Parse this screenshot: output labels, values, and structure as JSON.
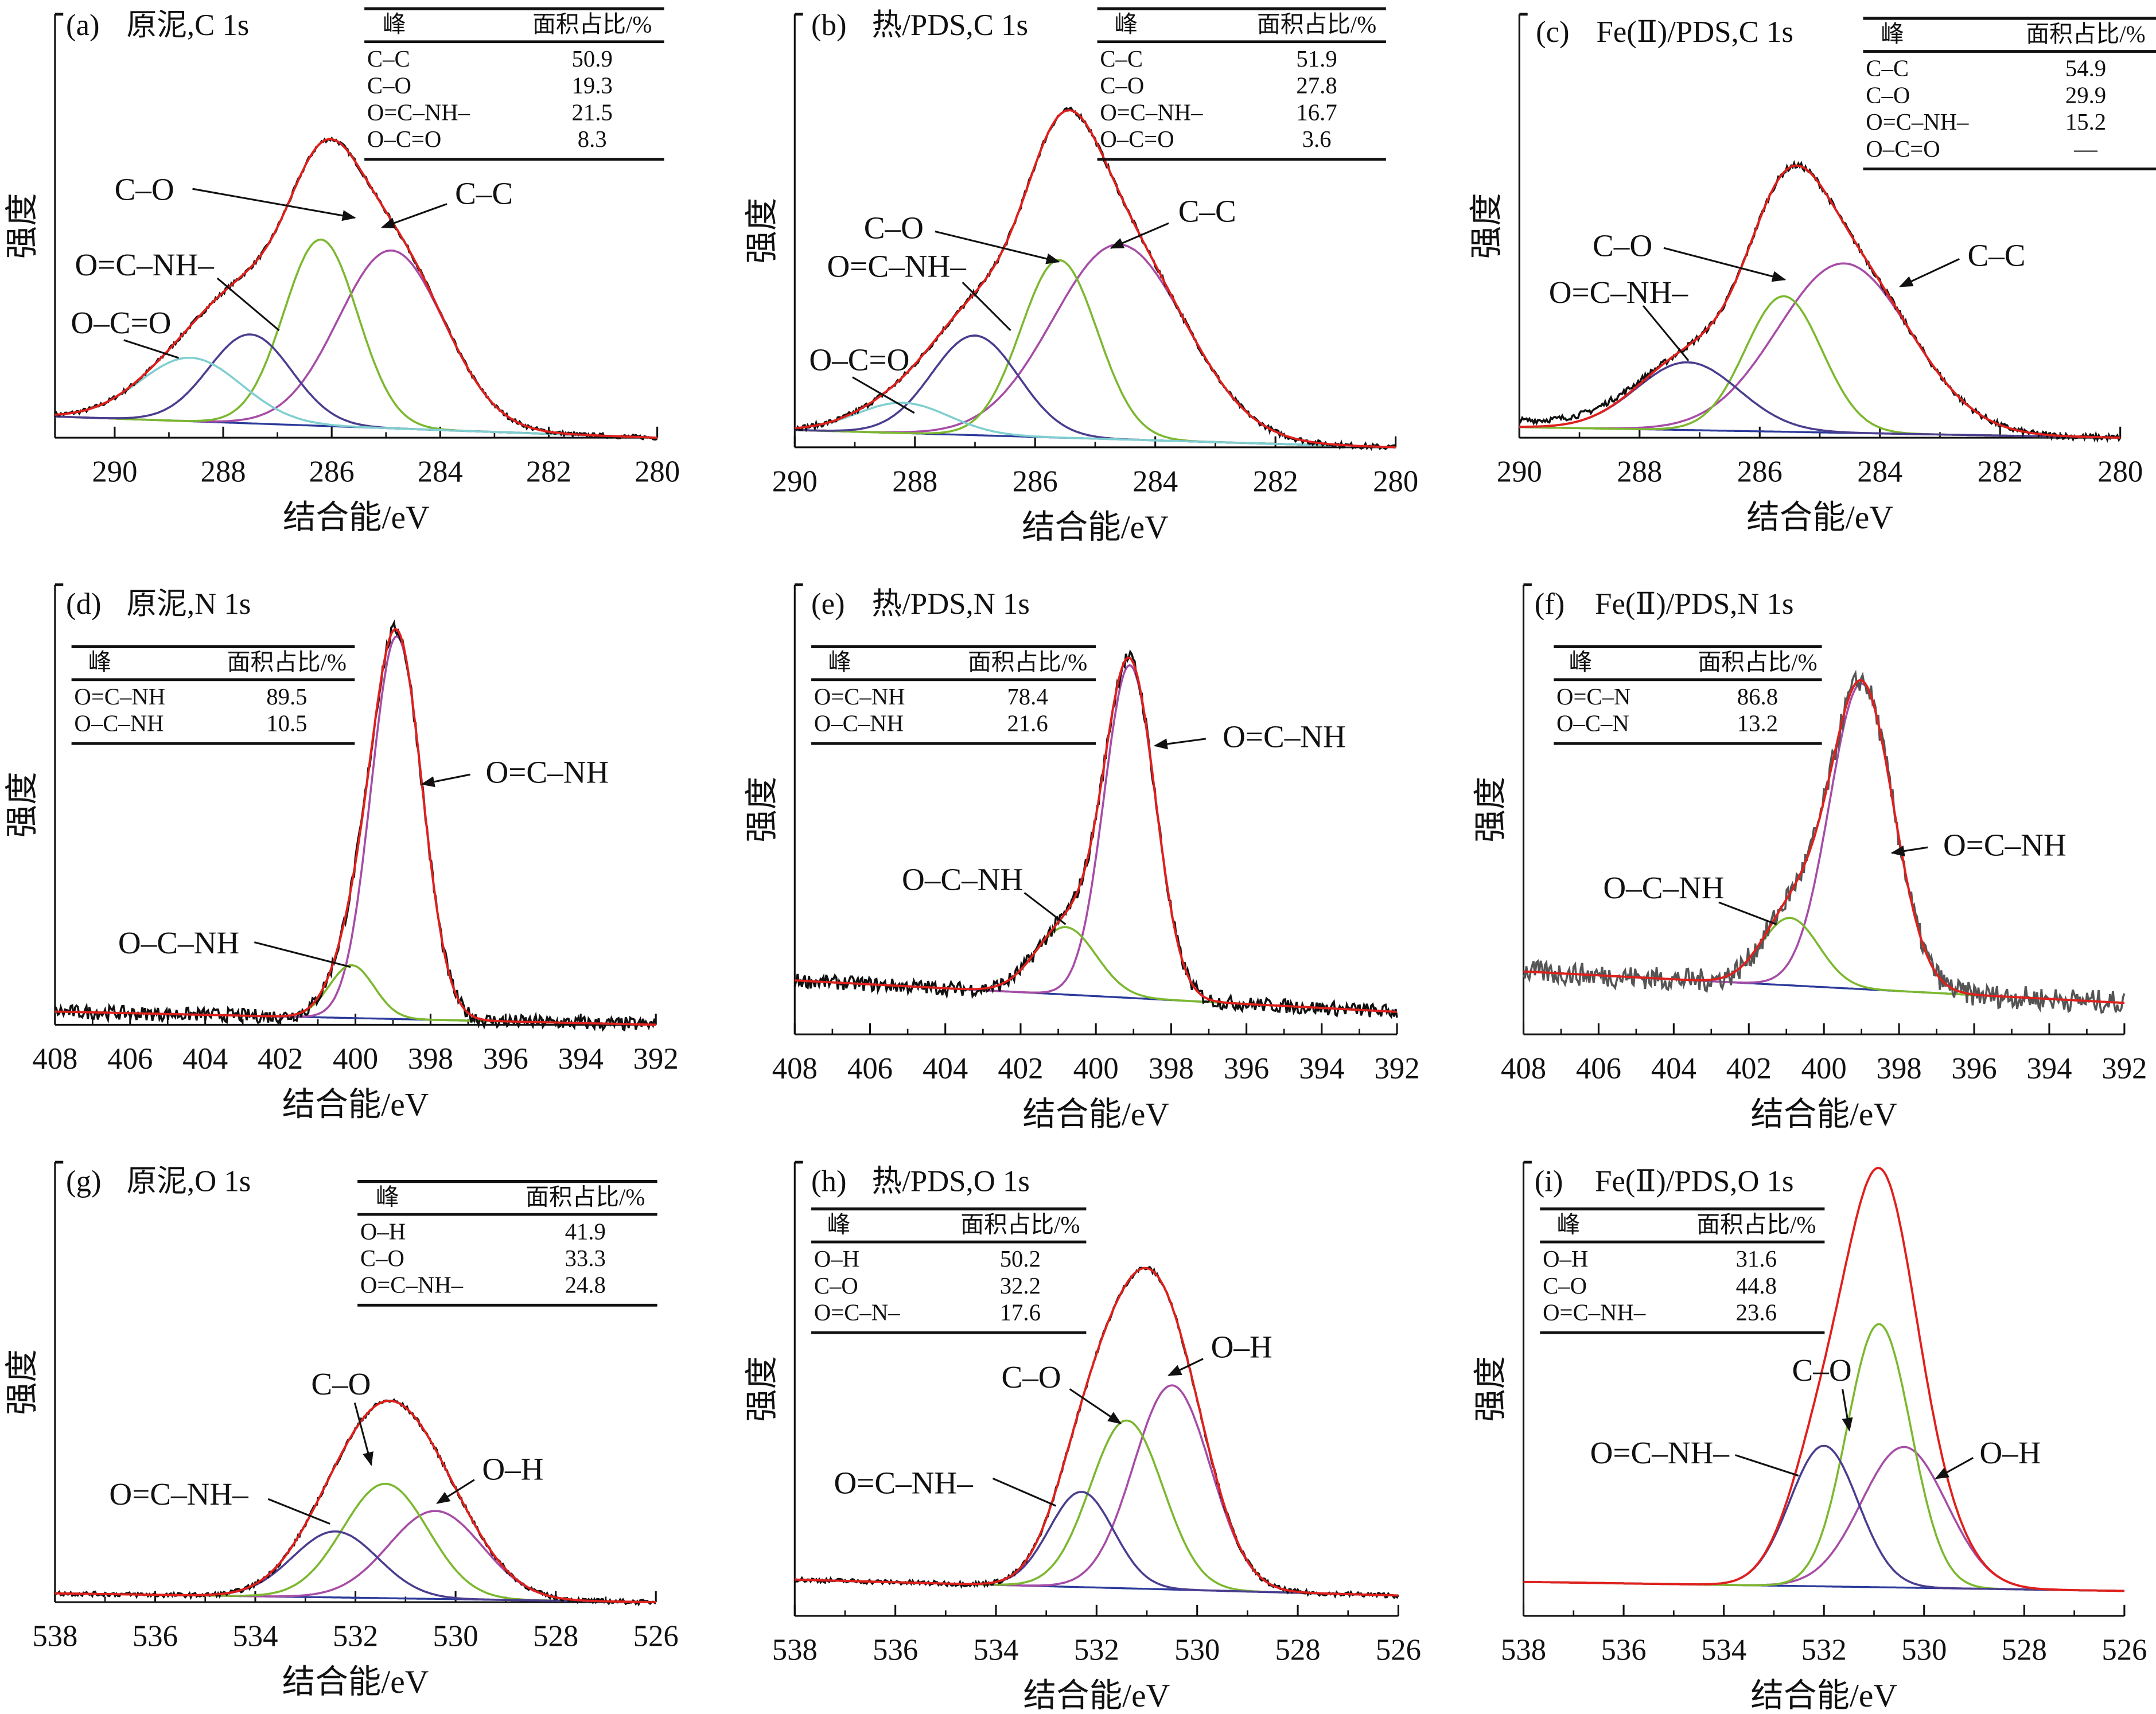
{
  "figure": {
    "ylabel": "强度",
    "xlabel": "结合能/eV",
    "table_header": [
      "峰",
      "面积占比/%"
    ]
  },
  "colors": {
    "envelope": "#e0201c",
    "raw": "#111111",
    "raw_noisy": "#555555",
    "baseline": "#2b3a9a",
    "purple": "#a64ca6",
    "green": "#7cb82f",
    "navy": "#4b3d8f",
    "cyan": "#7fcfd0"
  },
  "chart_data": [
    {
      "panel": "(a)",
      "title": "原泥,C 1s",
      "type": "line",
      "xlim": [
        291.1,
        280
      ],
      "xticks": [
        290,
        288,
        286,
        284,
        282,
        280
      ],
      "ylim": [
        0,
        100
      ],
      "grid": false,
      "baseline": [
        5,
        0
      ],
      "raw": true,
      "noise": 0.5,
      "components": [
        {
          "name": "C–C",
          "center": 284.9,
          "fwhm": 2.3,
          "height": 42,
          "color": "purple"
        },
        {
          "name": "C–O",
          "center": 286.2,
          "fwhm": 1.6,
          "height": 44,
          "color": "green"
        },
        {
          "name": "O=C–NH–",
          "center": 287.5,
          "fwhm": 1.8,
          "height": 21,
          "color": "navy"
        },
        {
          "name": "O–C=O",
          "center": 288.6,
          "fwhm": 2.2,
          "height": 15,
          "color": "cyan"
        }
      ],
      "table": [
        [
          "C–C",
          "50.9"
        ],
        [
          "C–O",
          "19.3"
        ],
        [
          "O=C–NH–",
          "21.5"
        ],
        [
          "O–C=O",
          "8.3"
        ]
      ],
      "annotations": [
        "C–O",
        "C–C",
        "O=C–NH–",
        "O–C=O"
      ]
    },
    {
      "panel": "(b)",
      "title": "热/PDS,C 1s",
      "type": "line",
      "xlim": [
        290,
        280
      ],
      "xticks": [
        290,
        288,
        286,
        284,
        282,
        280
      ],
      "ylim": [
        0,
        100
      ],
      "grid": false,
      "baseline": [
        4,
        0
      ],
      "raw": true,
      "noise": 0.6,
      "components": [
        {
          "name": "C–C",
          "center": 284.6,
          "fwhm": 2.6,
          "height": 45,
          "color": "purple"
        },
        {
          "name": "C–O",
          "center": 285.6,
          "fwhm": 1.5,
          "height": 41,
          "color": "green"
        },
        {
          "name": "O=C–NH–",
          "center": 287.0,
          "fwhm": 1.7,
          "height": 23,
          "color": "navy"
        },
        {
          "name": "O–C=O",
          "center": 288.2,
          "fwhm": 1.8,
          "height": 7,
          "color": "cyan"
        }
      ],
      "table": [
        [
          "C–C",
          "51.9"
        ],
        [
          "C–O",
          "27.8"
        ],
        [
          "O=C–NH–",
          "16.7"
        ],
        [
          "O–C=O",
          "3.6"
        ]
      ],
      "annotations": [
        "C–O",
        "C–C",
        "O=C–NH–",
        "O–C=O"
      ]
    },
    {
      "panel": "(c)",
      "title": "Fe(Ⅱ)/PDS,C 1s",
      "type": "line",
      "xlim": [
        290,
        280
      ],
      "xticks": [
        290,
        288,
        286,
        284,
        282,
        280
      ],
      "ylim": [
        0,
        100
      ],
      "grid": false,
      "baseline": [
        2.5,
        0
      ],
      "raw": true,
      "noise": 0.7,
      "components": [
        {
          "name": "C–C",
          "center": 284.6,
          "fwhm": 2.6,
          "height": 40,
          "color": "purple"
        },
        {
          "name": "C–O",
          "center": 285.6,
          "fwhm": 1.5,
          "height": 32,
          "color": "green"
        },
        {
          "name": "O=C–NH–",
          "center": 287.2,
          "fwhm": 2.0,
          "height": 16,
          "color": "navy"
        }
      ],
      "table": [
        [
          "C–C",
          "54.9"
        ],
        [
          "C–O",
          "29.9"
        ],
        [
          "O=C–NH–",
          "15.2"
        ],
        [
          "O–C=O",
          "—"
        ]
      ],
      "annotations": [
        "C–O",
        "C–C",
        "O=C–NH–"
      ]
    },
    {
      "panel": "(d)",
      "title": "原泥,N 1s",
      "type": "line",
      "xlim": [
        408,
        392
      ],
      "xticks": [
        408,
        406,
        404,
        402,
        400,
        398,
        396,
        394,
        392
      ],
      "ylim": [
        0,
        100
      ],
      "grid": false,
      "baseline": [
        3,
        0
      ],
      "raw": true,
      "noise": 1.6,
      "components": [
        {
          "name": "O=C–NH",
          "center": 398.9,
          "fwhm": 1.6,
          "height": 87,
          "color": "purple"
        },
        {
          "name": "O–C–NH",
          "center": 400.1,
          "fwhm": 1.4,
          "height": 12,
          "color": "green"
        }
      ],
      "table": [
        [
          "O=C–NH",
          "89.5"
        ],
        [
          "O–C–NH",
          "10.5"
        ]
      ],
      "annotations": [
        "O=C–NH",
        "O–C–NH"
      ]
    },
    {
      "panel": "(e)",
      "title": "热/PDS,N 1s",
      "type": "line",
      "xlim": [
        408,
        392
      ],
      "xticks": [
        408,
        406,
        404,
        402,
        400,
        398,
        396,
        394,
        392
      ],
      "ylim": [
        0,
        100
      ],
      "grid": false,
      "baseline": [
        12,
        5
      ],
      "raw": true,
      "noise": 1.6,
      "components": [
        {
          "name": "O=C–NH",
          "center": 399.1,
          "fwhm": 1.6,
          "height": 74,
          "color": "purple"
        },
        {
          "name": "O–C–NH",
          "center": 400.8,
          "fwhm": 1.9,
          "height": 15,
          "color": "green"
        }
      ],
      "table": [
        [
          "O=C–NH",
          "78.4"
        ],
        [
          "O–C–NH",
          "21.6"
        ]
      ],
      "annotations": [
        "O=C–NH",
        "O–C–NH"
      ]
    },
    {
      "panel": "(f)",
      "title": "Fe(Ⅱ)/PDS,N 1s",
      "type": "line",
      "xlim": [
        408,
        392
      ],
      "xticks": [
        408,
        406,
        404,
        402,
        400,
        398,
        396,
        394,
        392
      ],
      "ylim": [
        0,
        100
      ],
      "grid": false,
      "baseline": [
        14,
        7
      ],
      "raw": true,
      "noise": 2.6,
      "components": [
        {
          "name": "O=C–NH",
          "center": 399.0,
          "fwhm": 2.0,
          "height": 68,
          "color": "purple"
        },
        {
          "name": "O–C–N",
          "center": 400.9,
          "fwhm": 1.8,
          "height": 15,
          "color": "green"
        }
      ],
      "table": [
        [
          "O=C–N",
          "86.8"
        ],
        [
          "O–C–N",
          "13.2"
        ]
      ],
      "annotations": [
        "O=C–NH",
        "O–C–NH"
      ]
    },
    {
      "panel": "(g)",
      "title": "原泥,O 1s",
      "type": "line",
      "xlim": [
        538,
        526
      ],
      "xticks": [
        538,
        536,
        534,
        532,
        530,
        528,
        526
      ],
      "ylim": [
        0,
        100
      ],
      "grid": false,
      "baseline": [
        2,
        0
      ],
      "raw": true,
      "noise": 0.5,
      "components": [
        {
          "name": "O–H",
          "center": 530.4,
          "fwhm": 2.2,
          "height": 20,
          "color": "purple"
        },
        {
          "name": "C–O",
          "center": 531.4,
          "fwhm": 2.0,
          "height": 26,
          "color": "green"
        },
        {
          "name": "O=C–NH–",
          "center": 532.4,
          "fwhm": 2.0,
          "height": 15,
          "color": "navy"
        }
      ],
      "table": [
        [
          "O–H",
          "41.9"
        ],
        [
          "C–O",
          "33.3"
        ],
        [
          "O=C–NH–",
          "24.8"
        ]
      ],
      "annotations": [
        "C–O",
        "O–H",
        "O=C–NH–"
      ]
    },
    {
      "panel": "(h)",
      "title": "热/PDS,O 1s",
      "type": "line",
      "xlim": [
        538,
        526
      ],
      "xticks": [
        538,
        536,
        534,
        532,
        530,
        528,
        526
      ],
      "ylim": [
        0,
        100
      ],
      "grid": false,
      "baseline": [
        8,
        4.5
      ],
      "raw": true,
      "noise": 0.5,
      "components": [
        {
          "name": "O–H",
          "center": 530.5,
          "fwhm": 1.8,
          "height": 45,
          "color": "purple"
        },
        {
          "name": "C–O",
          "center": 531.4,
          "fwhm": 1.7,
          "height": 37,
          "color": "green"
        },
        {
          "name": "O=C–NH–",
          "center": 532.3,
          "fwhm": 1.5,
          "height": 21,
          "color": "navy"
        }
      ],
      "table": [
        [
          "O–H",
          "50.2"
        ],
        [
          "C–O",
          "32.2"
        ],
        [
          "O=C–N–",
          "17.6"
        ]
      ],
      "annotations": [
        "C–O",
        "O–H",
        "O=C–NH–"
      ]
    },
    {
      "panel": "(i)",
      "title": "Fe(Ⅱ)/PDS,O 1s",
      "type": "line",
      "xlim": [
        538,
        526
      ],
      "xticks": [
        538,
        536,
        534,
        532,
        530,
        528,
        526
      ],
      "ylim": [
        0,
        100
      ],
      "grid": false,
      "baseline": [
        7.5,
        5.5
      ],
      "raw": false,
      "noise": 0,
      "components": [
        {
          "name": "O–H",
          "center": 530.4,
          "fwhm": 2.0,
          "height": 31,
          "color": "purple"
        },
        {
          "name": "C–O",
          "center": 530.9,
          "fwhm": 1.5,
          "height": 58,
          "color": "green"
        },
        {
          "name": "O=C–NH–",
          "center": 532.0,
          "fwhm": 1.6,
          "height": 31,
          "color": "navy"
        }
      ],
      "table": [
        [
          "O–H",
          "31.6"
        ],
        [
          "C–O",
          "44.8"
        ],
        [
          "O=C–NH–",
          "23.6"
        ]
      ],
      "annotations": [
        "C–O",
        "O–H",
        "O=C–NH–"
      ]
    }
  ]
}
